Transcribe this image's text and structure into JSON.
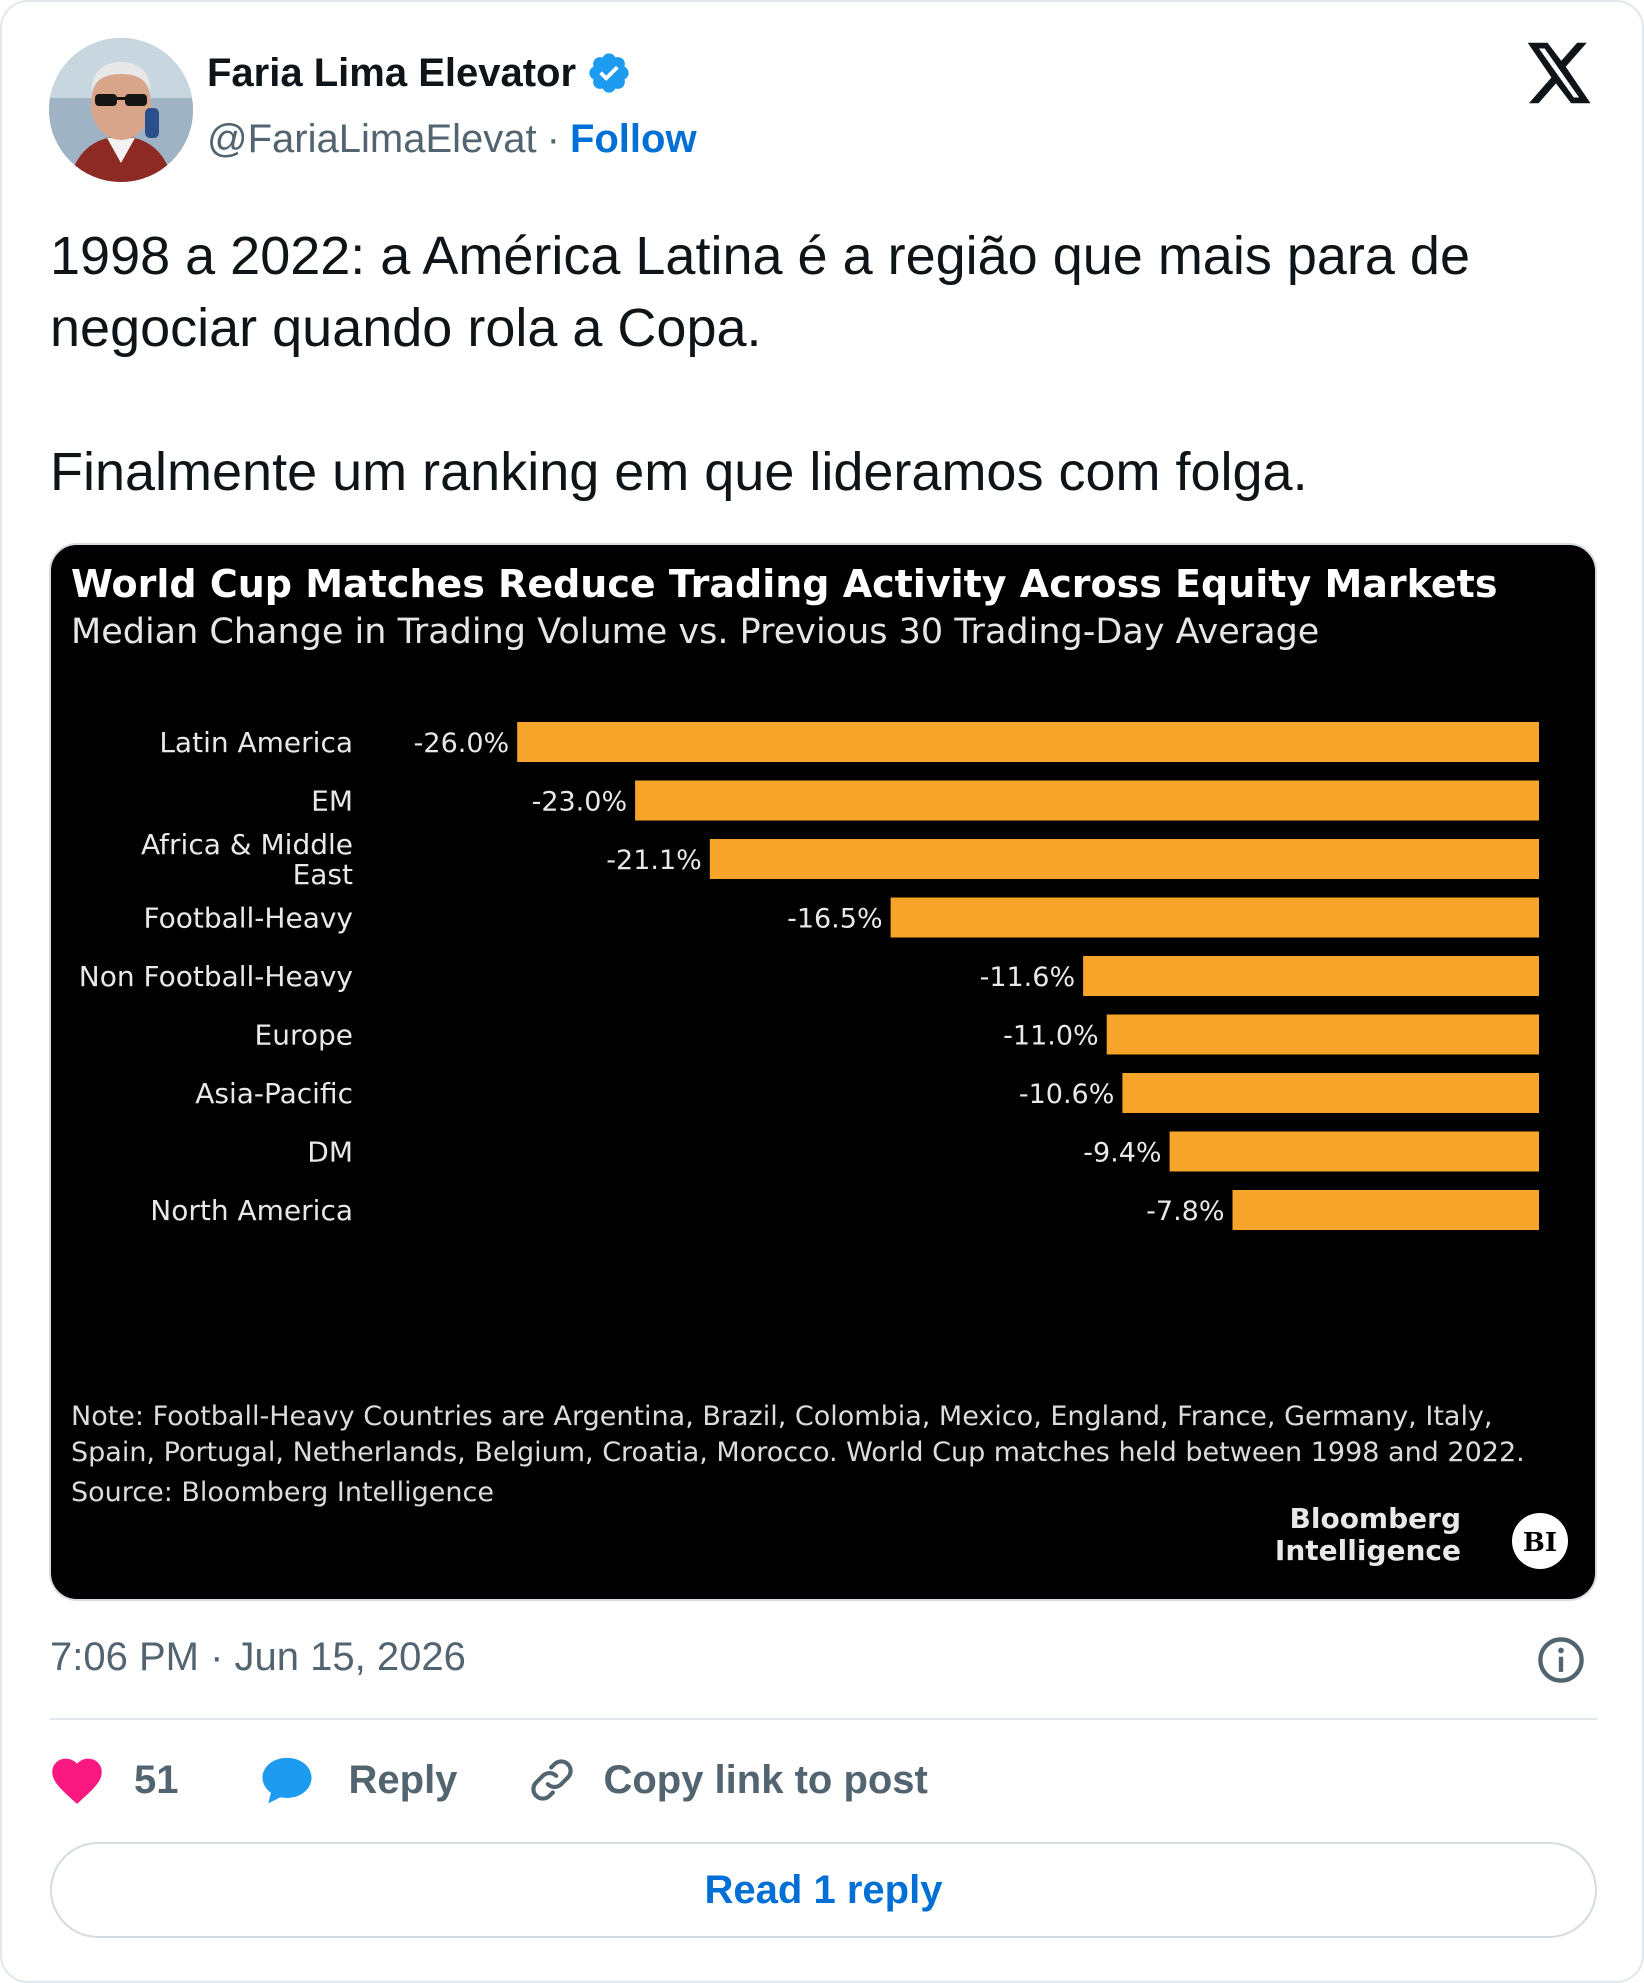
{
  "author": {
    "name": "Faria Lima Elevator",
    "handle": "@FariaLimaElevat",
    "separator": "·",
    "follow_label": "Follow"
  },
  "tweet": {
    "line1": "1998 a 2022: a América Latina é a região que mais para de negociar quando rola a Copa.",
    "line2": "Finalmente um ranking em que lideramos com folga."
  },
  "chart_data": {
    "type": "bar",
    "orientation": "horizontal",
    "title": "World Cup Matches Reduce Trading Activity Across Equity Markets",
    "subtitle": "Median Change in Trading Volume vs. Previous 30 Trading-Day Average",
    "categories": [
      "Latin America",
      "EM",
      "Africa & Middle East",
      "Football-Heavy",
      "Non Football-Heavy",
      "Europe",
      "Asia-Pacific",
      "DM",
      "North America"
    ],
    "values": [
      -26.0,
      -23.0,
      -21.1,
      -16.5,
      -11.6,
      -11.0,
      -10.6,
      -9.4,
      -7.8
    ],
    "value_labels": [
      "-26.0%",
      "-23.0%",
      "-21.1%",
      "-16.5%",
      "-11.6%",
      "-11.0%",
      "-10.6%",
      "-9.4%",
      "-7.8%"
    ],
    "bar_color": "#f7a42a",
    "background": "#000000",
    "note_line1": "Note: Football-Heavy Countries are Argentina, Brazil, Colombia, Mexico, England, France, Germany, Italy,",
    "note_line2": "Spain, Portugal, Netherlands, Belgium, Croatia, Morocco. World Cup matches held between 1998 and 2022.",
    "source": "Source: Bloomberg Intelligence",
    "brand_line1": "Bloomberg",
    "brand_line2": "Intelligence",
    "brand_badge": "BI"
  },
  "meta": {
    "time": "7:06 PM",
    "separator": " · ",
    "date": "Jun 15, 2026"
  },
  "actions": {
    "like_count": "51",
    "reply_label": "Reply",
    "copy_label": "Copy link to post"
  },
  "read_reply_label": "Read 1 reply",
  "colors": {
    "like": "#f91880",
    "link": "#006fd6",
    "verified": "#1d9bf0",
    "reply_icon": "#1d9bf0"
  }
}
